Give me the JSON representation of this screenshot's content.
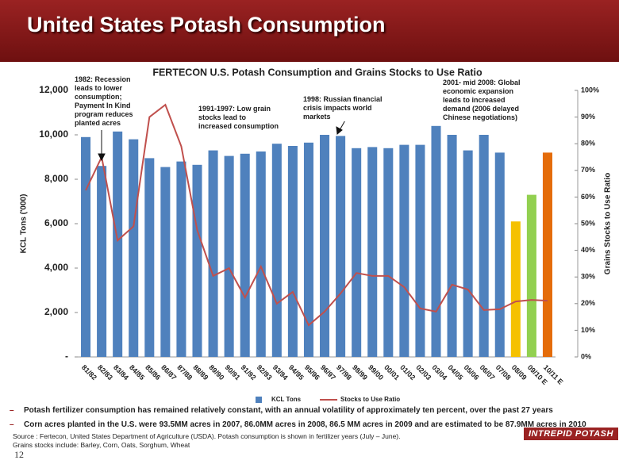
{
  "header": {
    "title": "United States Potash Consumption"
  },
  "chart_data": {
    "type": "bar",
    "title": "FERTECON U.S. Potash Consumption and Grains Stocks to Use Ratio",
    "categories": [
      "81/82",
      "82/83",
      "83/84",
      "84/85",
      "85/86",
      "86/87",
      "87/88",
      "88/89",
      "89/90",
      "90/91",
      "91/92",
      "92/93",
      "93/94",
      "94/95",
      "95/96",
      "96/97",
      "97/98",
      "98/99",
      "99/00",
      "00/01",
      "01/02",
      "02/03",
      "03/04",
      "04/05",
      "05/06",
      "06/07",
      "07/08",
      "08/09",
      "09/10 E",
      "10/11 E"
    ],
    "series": [
      {
        "name": "KCL Tons",
        "color": "#4f81bd",
        "colors": [
          "#4f81bd",
          "#4f81bd",
          "#4f81bd",
          "#4f81bd",
          "#4f81bd",
          "#4f81bd",
          "#4f81bd",
          "#4f81bd",
          "#4f81bd",
          "#4f81bd",
          "#4f81bd",
          "#4f81bd",
          "#4f81bd",
          "#4f81bd",
          "#4f81bd",
          "#4f81bd",
          "#4f81bd",
          "#4f81bd",
          "#4f81bd",
          "#4f81bd",
          "#4f81bd",
          "#4f81bd",
          "#4f81bd",
          "#4f81bd",
          "#4f81bd",
          "#4f81bd",
          "#4f81bd",
          "#f5c100",
          "#92d050",
          "#e46c0a"
        ],
        "values": [
          9900,
          8600,
          10150,
          9800,
          8950,
          8550,
          8800,
          8650,
          9300,
          9050,
          9150,
          9250,
          9600,
          9500,
          9650,
          10000,
          9950,
          9400,
          9450,
          9400,
          9550,
          9550,
          10400,
          10000,
          9300,
          10000,
          9200,
          6100,
          7300,
          9200
        ]
      },
      {
        "name": "Stocks to Use Ratio",
        "type": "line",
        "axis": "y2",
        "color": "#c0504d",
        "values": [
          62.5,
          75,
          43.7,
          49,
          90,
          94.6,
          79,
          47.6,
          30.4,
          33.3,
          22.3,
          33.9,
          20,
          24.4,
          11.9,
          17,
          23.8,
          31.5,
          30.4,
          30.4,
          26.2,
          18.2,
          17,
          27.1,
          25.3,
          17.6,
          17.9,
          20.8,
          21.4,
          21.1
        ]
      }
    ],
    "ylim": [
      0,
      12000
    ],
    "yticks": [
      {
        "value": 0,
        "label": "-"
      },
      {
        "value": 2000,
        "label": "2,000"
      },
      {
        "value": 4000,
        "label": "4,000"
      },
      {
        "value": 6000,
        "label": "6,000"
      },
      {
        "value": 8000,
        "label": "8,000"
      },
      {
        "value": 10000,
        "label": "10,000"
      },
      {
        "value": 12000,
        "label": "12,000"
      }
    ],
    "y2lim": [
      0,
      100
    ],
    "y2ticks": [
      {
        "value": 0,
        "label": "0%"
      },
      {
        "value": 10,
        "label": "10%"
      },
      {
        "value": 20,
        "label": "20%"
      },
      {
        "value": 30,
        "label": "30%"
      },
      {
        "value": 40,
        "label": "40%"
      },
      {
        "value": 50,
        "label": "50%"
      },
      {
        "value": 60,
        "label": "60%"
      },
      {
        "value": 70,
        "label": "70%"
      },
      {
        "value": 80,
        "label": "80%"
      },
      {
        "value": 90,
        "label": "90%"
      },
      {
        "value": 100,
        "label": "100%"
      }
    ],
    "y_label": "KCL Tons ('000)",
    "y2_label": "Grains Stocks to Use Ratio",
    "legend": "bottom",
    "grid": false,
    "annotations": [
      {
        "text": "1982: Recession leads to lower consumption; Payment In Kind program reduces planted acres"
      },
      {
        "text": "1991-1997: Low grain stocks lead to increased consumption"
      },
      {
        "text": "1998: Russian financial crisis impacts world markets"
      },
      {
        "text": "2001- mid 2008: Global economic expansion leads to increased demand (2006 delayed Chinese negotiations)"
      }
    ]
  },
  "bullets": [
    "Potash fertilizer consumption has remained relatively constant, with an annual volatility of approximately ten percent, over the past 27 years",
    "Corn acres planted in the U.S. were 93.5MM acres in 2007, 86.0MM acres in 2008, 86.5 MM acres in 2009  and are estimated to be 87.9MM acres in 2010"
  ],
  "source": "Source : Fertecon, United States Department of Agriculture (USDA).  Potash consumption is shown in fertilizer years (July – June).",
  "note": "Grains stocks include: Barley, Corn, Oats, Sorghum, Wheat",
  "page_number": "12",
  "logo": "INTREPID POTASH"
}
